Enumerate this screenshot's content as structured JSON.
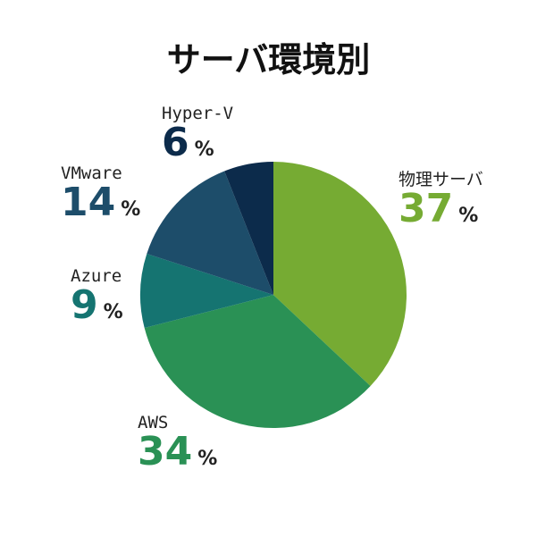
{
  "chart_data": {
    "type": "pie",
    "title": "サーバ環境別",
    "unit": "%",
    "slices": [
      {
        "label": "物理サーバ",
        "value": 37,
        "color": "#76ab33"
      },
      {
        "label": "AWS",
        "value": 34,
        "color": "#2a9155"
      },
      {
        "label": "Azure",
        "value": 9,
        "color": "#157471"
      },
      {
        "label": "VMware",
        "value": 14,
        "color": "#1d4d6a"
      },
      {
        "label": "Hyper-V",
        "value": 6,
        "color": "#0c2b4b"
      }
    ]
  }
}
